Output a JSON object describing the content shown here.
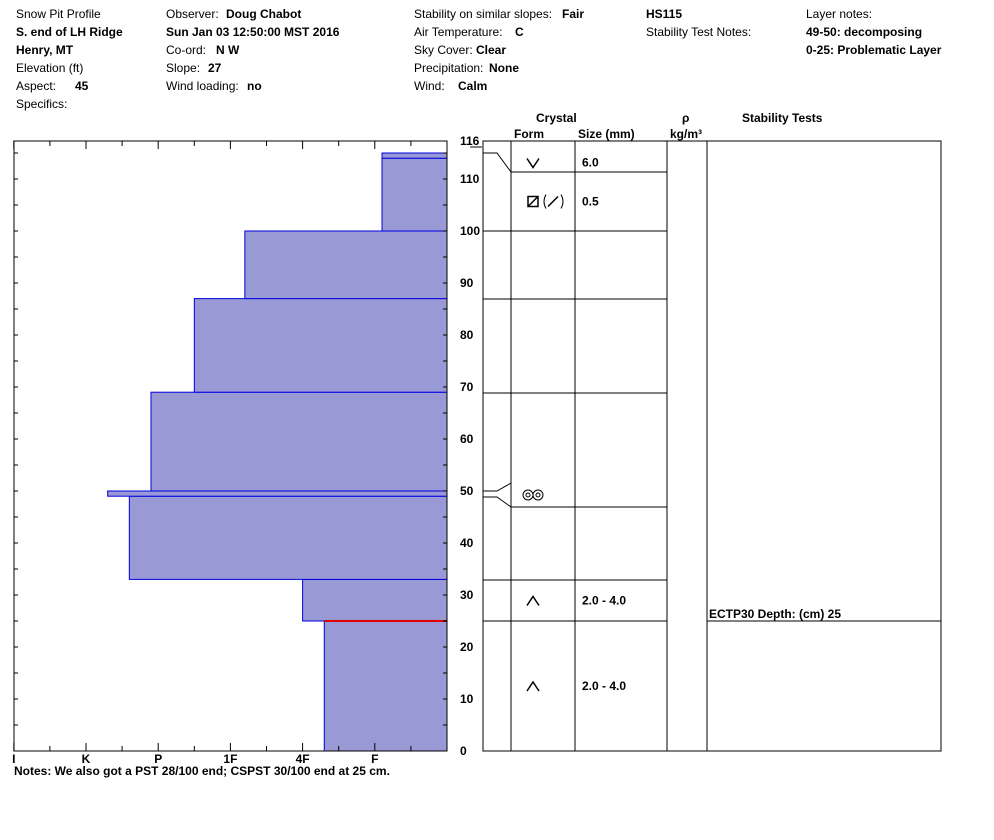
{
  "header": {
    "col1": {
      "title": "Snow Pit Profile",
      "location": "S. end of LH Ridge",
      "region": "Henry, MT",
      "elevation_label": "Elevation (ft)",
      "aspect_label": "Aspect:",
      "aspect_value": "45",
      "specifics_label": "Specifics:"
    },
    "col2": {
      "observer_label": "Observer:",
      "observer_value": "Doug Chabot",
      "datetime": "Sun Jan 03 12:50:00 MST 2016",
      "coord_label": "Co-ord:",
      "coord_value": "N  W",
      "slope_label": "Slope:",
      "slope_value": "27",
      "wind_loading_label": "Wind loading:",
      "wind_loading_value": "no"
    },
    "col3": {
      "stability_label": "Stability on similar slopes:",
      "stability_value": "Fair",
      "air_temp_label": "Air Temperature:",
      "air_temp_value": "C",
      "sky_label": "Sky Cover:",
      "sky_value": "Clear",
      "precip_label": "Precipitation:",
      "precip_value": "None",
      "wind_label": "Wind:",
      "wind_value": "Calm"
    },
    "col4": {
      "hs": "HS115",
      "stability_notes_label": "Stability Test Notes:"
    },
    "col5": {
      "layer_notes_label": "Layer notes:",
      "note1": "49-50: decomposing",
      "note2": "0-25: Problematic Layer"
    }
  },
  "table_headers": {
    "crystal": "Crystal",
    "form": "Form",
    "size": "Size (mm)",
    "rho": "ρ",
    "rho_unit": "kg/m³",
    "stability_tests": "Stability Tests"
  },
  "notes": "Notes:  We also got a PST 28/100 end; CSPST 30/100 end at 25 cm.",
  "chart_data": {
    "type": "bar",
    "title": "",
    "ylim": [
      0,
      116
    ],
    "y_ticks": [
      0,
      10,
      20,
      30,
      40,
      50,
      60,
      70,
      80,
      90,
      100,
      110,
      116
    ],
    "hardness_scale": [
      "I",
      "K",
      "P",
      "1F",
      "4F",
      "F"
    ],
    "hardness_tick_values": [
      6.0,
      5.0,
      4.0,
      3.0,
      2.0,
      1.0
    ],
    "layers": [
      {
        "bottom": 0,
        "top": 25,
        "hardness": 1.7
      },
      {
        "bottom": 25,
        "top": 33,
        "hardness": 2.0
      },
      {
        "bottom": 33,
        "top": 49,
        "hardness": 4.4
      },
      {
        "bottom": 49,
        "top": 50,
        "hardness": 4.7
      },
      {
        "bottom": 50,
        "top": 69,
        "hardness": 4.1
      },
      {
        "bottom": 69,
        "top": 87,
        "hardness": 3.5
      },
      {
        "bottom": 87,
        "top": 100,
        "hardness": 2.8
      },
      {
        "bottom": 100,
        "top": 114,
        "hardness": 0.9
      },
      {
        "bottom": 114,
        "top": 115,
        "hardness": 0.9
      }
    ],
    "highlight_line": {
      "depth": 25,
      "color": "#e00000"
    },
    "crystal_layers": [
      {
        "bottom": 110,
        "top": 115,
        "form": "surface-hoar-icon",
        "size": "6.0"
      },
      {
        "bottom": 100,
        "top": 110,
        "form": "faceted-rounded-icon",
        "size": "0.5"
      },
      {
        "bottom": 87,
        "top": 100,
        "form": "",
        "size": ""
      },
      {
        "bottom": 69,
        "top": 87,
        "form": "",
        "size": ""
      },
      {
        "bottom": 47,
        "top": 52,
        "form": "melt-forms-icon",
        "size": ""
      },
      {
        "bottom": 33,
        "top": 47,
        "form": "",
        "size": ""
      },
      {
        "bottom": 25,
        "top": 33,
        "form": "depth-hoar-icon",
        "size": "2.0 - 4.0"
      },
      {
        "bottom": 0,
        "top": 25,
        "form": "depth-hoar-icon",
        "size": "2.0 - 4.0"
      }
    ],
    "stability_tests": [
      {
        "depth": 25,
        "label": "ECTP30   Depth: (cm) 25"
      }
    ],
    "colors": {
      "fill": "#9999d6",
      "stroke": "#0000e0",
      "line": "#000000"
    }
  }
}
